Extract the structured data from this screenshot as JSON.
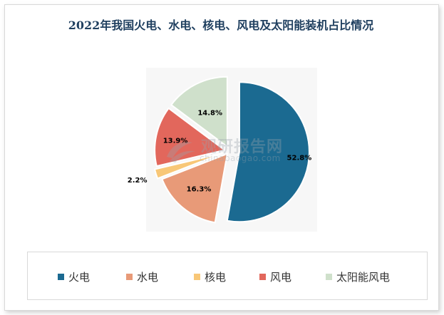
{
  "title": "2022年我国火电、水电、核电、风电及太阳能装机占比情况",
  "watermark": {
    "main": "观研报告网",
    "sub": "chinabaogao.com"
  },
  "chart_data": {
    "type": "pie",
    "title": "2022年我国火电、水电、核电、风电及太阳能装机占比情况",
    "categories": [
      "火电",
      "水电",
      "核电",
      "风电",
      "太阳能风电"
    ],
    "values": [
      52.8,
      16.3,
      2.2,
      13.9,
      14.8
    ],
    "labels": [
      "52.8%",
      "16.3%",
      "2.2%",
      "13.9%",
      "14.8%"
    ],
    "colors": [
      "#1b6a91",
      "#e89a78",
      "#f8c777",
      "#e2675c",
      "#cfe0cb"
    ],
    "exploded": true,
    "legend_position": "bottom"
  }
}
